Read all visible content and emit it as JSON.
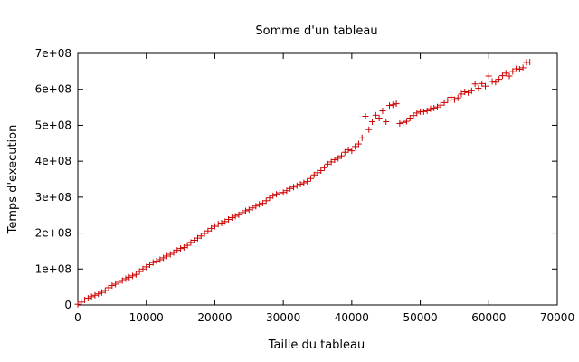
{
  "chart_data": {
    "type": "scatter",
    "title": "Somme d'un tableau",
    "xlabel": "Taille du tableau",
    "ylabel": "Temps d'execution",
    "xlim": [
      0,
      70000
    ],
    "ylim": [
      0,
      700000000
    ],
    "x_ticks": [
      0,
      10000,
      20000,
      30000,
      40000,
      50000,
      60000,
      70000
    ],
    "x_tick_labels": [
      "0",
      "10000",
      "20000",
      "30000",
      "40000",
      "50000",
      "60000",
      "70000"
    ],
    "y_ticks": [
      0,
      100000000,
      200000000,
      300000000,
      400000000,
      500000000,
      600000000,
      700000000
    ],
    "y_tick_labels": [
      "0",
      "1e+08",
      "2e+08",
      "3e+08",
      "4e+08",
      "5e+08",
      "6e+08",
      "7e+08"
    ],
    "grid": false,
    "legend": false,
    "marker": "+",
    "series": [
      {
        "color": "#cc0000",
        "points": [
          [
            0,
            2000000
          ],
          [
            500,
            8000000
          ],
          [
            1000,
            14000000
          ],
          [
            1500,
            19000000
          ],
          [
            2000,
            23000000
          ],
          [
            2500,
            27000000
          ],
          [
            3000,
            31000000
          ],
          [
            3500,
            35000000
          ],
          [
            4000,
            40000000
          ],
          [
            4500,
            48000000
          ],
          [
            5000,
            54000000
          ],
          [
            5500,
            58000000
          ],
          [
            6000,
            63000000
          ],
          [
            6500,
            68000000
          ],
          [
            7000,
            73000000
          ],
          [
            7500,
            77000000
          ],
          [
            8000,
            81000000
          ],
          [
            8500,
            85000000
          ],
          [
            9000,
            93000000
          ],
          [
            9500,
            100000000
          ],
          [
            10000,
            106000000
          ],
          [
            10500,
            112000000
          ],
          [
            11000,
            118000000
          ],
          [
            11500,
            122000000
          ],
          [
            12000,
            126000000
          ],
          [
            12500,
            131000000
          ],
          [
            13000,
            136000000
          ],
          [
            13500,
            141000000
          ],
          [
            14000,
            146000000
          ],
          [
            14500,
            152000000
          ],
          [
            15000,
            157000000
          ],
          [
            15500,
            160000000
          ],
          [
            16000,
            166000000
          ],
          [
            16500,
            174000000
          ],
          [
            17000,
            180000000
          ],
          [
            17500,
            186000000
          ],
          [
            18000,
            192000000
          ],
          [
            18500,
            199000000
          ],
          [
            19000,
            206000000
          ],
          [
            19500,
            213000000
          ],
          [
            20000,
            219000000
          ],
          [
            20500,
            225000000
          ],
          [
            21000,
            228000000
          ],
          [
            21500,
            232000000
          ],
          [
            22000,
            238000000
          ],
          [
            22500,
            243000000
          ],
          [
            23000,
            247000000
          ],
          [
            23500,
            251000000
          ],
          [
            24000,
            257000000
          ],
          [
            24500,
            262000000
          ],
          [
            25000,
            265000000
          ],
          [
            25500,
            270000000
          ],
          [
            26000,
            275000000
          ],
          [
            26500,
            280000000
          ],
          [
            27000,
            283000000
          ],
          [
            27500,
            290000000
          ],
          [
            28000,
            298000000
          ],
          [
            28500,
            304000000
          ],
          [
            29000,
            308000000
          ],
          [
            29500,
            312000000
          ],
          [
            30000,
            313000000
          ],
          [
            30500,
            318000000
          ],
          [
            31000,
            324000000
          ],
          [
            31500,
            328000000
          ],
          [
            32000,
            332000000
          ],
          [
            32500,
            336000000
          ],
          [
            33000,
            340000000
          ],
          [
            33500,
            344000000
          ],
          [
            34000,
            352000000
          ],
          [
            34500,
            362000000
          ],
          [
            35000,
            368000000
          ],
          [
            35500,
            374000000
          ],
          [
            36000,
            382000000
          ],
          [
            36500,
            392000000
          ],
          [
            37000,
            398000000
          ],
          [
            37500,
            404000000
          ],
          [
            38000,
            408000000
          ],
          [
            38500,
            415000000
          ],
          [
            39000,
            425000000
          ],
          [
            39500,
            432000000
          ],
          [
            40000,
            429000000
          ],
          [
            40500,
            441000000
          ],
          [
            41000,
            448000000
          ],
          [
            41500,
            465000000
          ],
          [
            42000,
            525000000
          ],
          [
            42500,
            488000000
          ],
          [
            43000,
            510000000
          ],
          [
            43500,
            528000000
          ],
          [
            44000,
            520000000
          ],
          [
            44500,
            540000000
          ],
          [
            45000,
            510000000
          ],
          [
            45500,
            555000000
          ],
          [
            46000,
            557000000
          ],
          [
            46500,
            560000000
          ],
          [
            47000,
            505000000
          ],
          [
            47500,
            508000000
          ],
          [
            48000,
            511000000
          ],
          [
            48500,
            520000000
          ],
          [
            49000,
            527000000
          ],
          [
            49500,
            534000000
          ],
          [
            50000,
            538000000
          ],
          [
            50500,
            538000000
          ],
          [
            51000,
            540000000
          ],
          [
            51500,
            546000000
          ],
          [
            52000,
            548000000
          ],
          [
            52500,
            551000000
          ],
          [
            53000,
            556000000
          ],
          [
            53500,
            563000000
          ],
          [
            54000,
            570000000
          ],
          [
            54500,
            578000000
          ],
          [
            55000,
            571000000
          ],
          [
            55500,
            576000000
          ],
          [
            56000,
            587000000
          ],
          [
            56500,
            593000000
          ],
          [
            57000,
            591000000
          ],
          [
            57500,
            596000000
          ],
          [
            58000,
            615000000
          ],
          [
            58500,
            603000000
          ],
          [
            59000,
            616000000
          ],
          [
            59500,
            609000000
          ],
          [
            60000,
            637000000
          ],
          [
            60500,
            622000000
          ],
          [
            61000,
            620000000
          ],
          [
            61500,
            628000000
          ],
          [
            62000,
            638000000
          ],
          [
            62500,
            645000000
          ],
          [
            63000,
            637000000
          ],
          [
            63500,
            650000000
          ],
          [
            64000,
            657000000
          ],
          [
            64500,
            656000000
          ],
          [
            65000,
            660000000
          ],
          [
            65500,
            675000000
          ],
          [
            66000,
            676000000
          ]
        ]
      }
    ]
  }
}
